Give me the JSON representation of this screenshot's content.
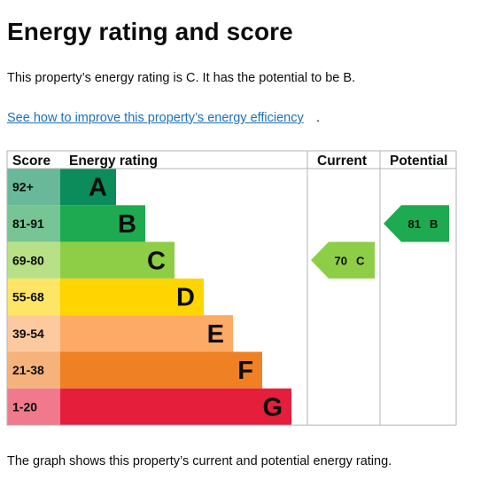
{
  "heading": "Energy rating and score",
  "summary": "This property’s energy rating is C. It has the potential to be B.",
  "improve_link": "See how to improve this property’s energy efficiency",
  "improve_suffix": ".",
  "table": {
    "headers": {
      "score": "Score",
      "rating": "Energy rating",
      "current": "Current",
      "potential": "Potential"
    },
    "bands": [
      {
        "score": "92+",
        "letter": "A",
        "bar_color": "#0c8b5b",
        "score_color": "#68b899"
      },
      {
        "score": "81-91",
        "letter": "B",
        "bar_color": "#1daa50",
        "score_color": "#77c494"
      },
      {
        "score": "69-80",
        "letter": "C",
        "bar_color": "#8dce46",
        "score_color": "#b8e086"
      },
      {
        "score": "55-68",
        "letter": "D",
        "bar_color": "#ffd500",
        "score_color": "#ffe566"
      },
      {
        "score": "39-54",
        "letter": "E",
        "bar_color": "#fcaa65",
        "score_color": "#fdca9f"
      },
      {
        "score": "21-38",
        "letter": "F",
        "bar_color": "#ef8023",
        "score_color": "#f5b37b"
      },
      {
        "score": "1-20",
        "letter": "G",
        "bar_color": "#e41e3b",
        "score_color": "#f07a8b"
      }
    ],
    "current": {
      "score": "70",
      "letter": "C",
      "band": 2,
      "color": "#8dce46"
    },
    "potential": {
      "score": "81",
      "letter": "B",
      "band": 1,
      "color": "#1daa50"
    }
  },
  "footer": "The graph shows this property’s current and potential energy rating."
}
